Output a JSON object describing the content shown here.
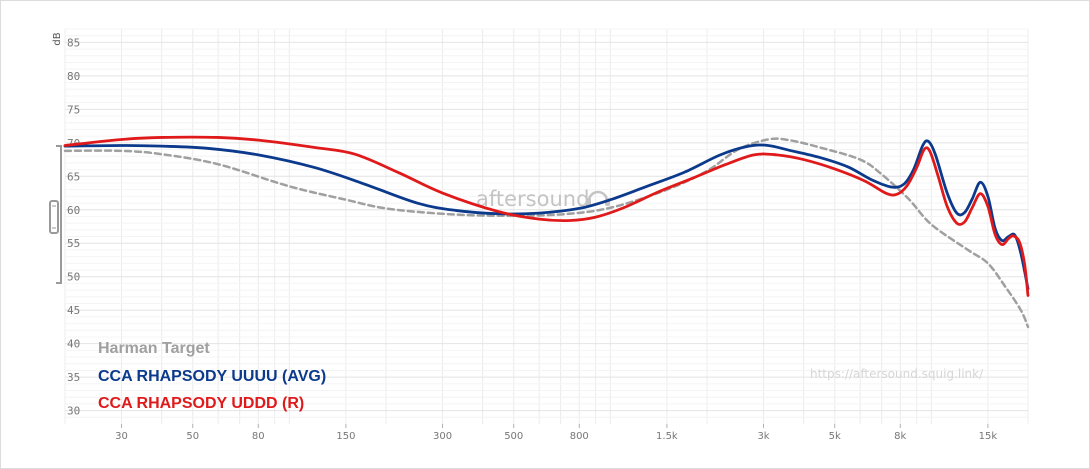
{
  "chart_data": {
    "type": "line",
    "ylabel": "dB",
    "xscale": "log",
    "xlim": [
      20,
      20000
    ],
    "ylim": [
      28,
      87
    ],
    "yticks": [
      85,
      80,
      75,
      70,
      65,
      60,
      55,
      50,
      45,
      40,
      35,
      30
    ],
    "xticks": [
      {
        "v": 30,
        "label": "30"
      },
      {
        "v": 50,
        "label": "50"
      },
      {
        "v": 80,
        "label": "80"
      },
      {
        "v": 150,
        "label": "150"
      },
      {
        "v": 300,
        "label": "300"
      },
      {
        "v": 500,
        "label": "500"
      },
      {
        "v": 800,
        "label": "800"
      },
      {
        "v": 1500,
        "label": "1.5k"
      },
      {
        "v": 3000,
        "label": "3k"
      },
      {
        "v": 5000,
        "label": "5k"
      },
      {
        "v": 8000,
        "label": "8k"
      },
      {
        "v": 15000,
        "label": "15k"
      }
    ],
    "xgrid": [
      20,
      30,
      40,
      50,
      60,
      70,
      80,
      90,
      100,
      150,
      200,
      300,
      400,
      500,
      600,
      700,
      800,
      900,
      1000,
      1500,
      2000,
      3000,
      4000,
      5000,
      6000,
      7000,
      8000,
      9000,
      10000,
      15000,
      20000
    ],
    "grid": true,
    "legend_position": "bottom-left",
    "series": [
      {
        "name": "Harman Target",
        "color": "#a0a0a0",
        "dashed": true,
        "points": [
          [
            20,
            68.8
          ],
          [
            30,
            68.8
          ],
          [
            40,
            68.3
          ],
          [
            60,
            66.8
          ],
          [
            100,
            63.5
          ],
          [
            150,
            61.5
          ],
          [
            200,
            60.2
          ],
          [
            300,
            59.4
          ],
          [
            450,
            59.1
          ],
          [
            700,
            59.3
          ],
          [
            1000,
            60.3
          ],
          [
            1500,
            63.0
          ],
          [
            2000,
            65.8
          ],
          [
            2500,
            69.0
          ],
          [
            3100,
            70.5
          ],
          [
            3600,
            70.4
          ],
          [
            4500,
            69.3
          ],
          [
            6000,
            67.5
          ],
          [
            7000,
            65.3
          ],
          [
            8500,
            61.6
          ],
          [
            10000,
            57.8
          ],
          [
            13000,
            54.0
          ],
          [
            15000,
            52.0
          ],
          [
            17000,
            48.5
          ],
          [
            19000,
            45.0
          ],
          [
            20000,
            42.5
          ]
        ]
      },
      {
        "name": "CCA RHAPSODY UUUU (AVG)",
        "color": "#0b3a8c",
        "dashed": false,
        "points": [
          [
            20,
            69.5
          ],
          [
            30,
            69.6
          ],
          [
            40,
            69.5
          ],
          [
            55,
            69.2
          ],
          [
            80,
            68.2
          ],
          [
            120,
            66.3
          ],
          [
            170,
            63.9
          ],
          [
            250,
            61.0
          ],
          [
            330,
            59.9
          ],
          [
            450,
            59.4
          ],
          [
            600,
            59.5
          ],
          [
            800,
            60.2
          ],
          [
            1000,
            61.5
          ],
          [
            1300,
            63.5
          ],
          [
            1700,
            65.6
          ],
          [
            2200,
            68.2
          ],
          [
            2700,
            69.5
          ],
          [
            3100,
            69.6
          ],
          [
            3600,
            68.9
          ],
          [
            4500,
            67.8
          ],
          [
            5500,
            66.4
          ],
          [
            6500,
            64.5
          ],
          [
            7500,
            63.4
          ],
          [
            8200,
            63.8
          ],
          [
            8800,
            66.0
          ],
          [
            9400,
            69.6
          ],
          [
            9800,
            70.2
          ],
          [
            10300,
            68.2
          ],
          [
            11200,
            62.5
          ],
          [
            12000,
            59.5
          ],
          [
            12700,
            59.6
          ],
          [
            13400,
            61.6
          ],
          [
            14200,
            64.1
          ],
          [
            15000,
            62.0
          ],
          [
            15800,
            57.2
          ],
          [
            16600,
            55.4
          ],
          [
            17400,
            56.0
          ],
          [
            18200,
            56.2
          ],
          [
            19000,
            53.5
          ],
          [
            20000,
            48.2
          ]
        ]
      },
      {
        "name": "CCA RHAPSODY UDDD (R)",
        "color": "#e01a1a",
        "dashed": false,
        "points": [
          [
            20,
            69.6
          ],
          [
            30,
            70.5
          ],
          [
            40,
            70.8
          ],
          [
            60,
            70.8
          ],
          [
            80,
            70.4
          ],
          [
            120,
            69.3
          ],
          [
            160,
            68.3
          ],
          [
            220,
            65.5
          ],
          [
            300,
            62.5
          ],
          [
            450,
            59.7
          ],
          [
            600,
            58.6
          ],
          [
            750,
            58.4
          ],
          [
            900,
            58.9
          ],
          [
            1100,
            60.3
          ],
          [
            1400,
            62.6
          ],
          [
            1800,
            64.7
          ],
          [
            2300,
            66.8
          ],
          [
            2800,
            68.2
          ],
          [
            3300,
            68.2
          ],
          [
            4000,
            67.5
          ],
          [
            5000,
            66.1
          ],
          [
            6200,
            64.3
          ],
          [
            7200,
            62.5
          ],
          [
            7800,
            62.3
          ],
          [
            8400,
            63.6
          ],
          [
            9000,
            66.3
          ],
          [
            9500,
            69.0
          ],
          [
            9900,
            68.7
          ],
          [
            10500,
            65.0
          ],
          [
            11200,
            60.5
          ],
          [
            12000,
            58.0
          ],
          [
            12700,
            58.2
          ],
          [
            13400,
            60.3
          ],
          [
            14200,
            62.4
          ],
          [
            15000,
            60.5
          ],
          [
            15800,
            56.3
          ],
          [
            16600,
            54.8
          ],
          [
            17400,
            55.7
          ],
          [
            18000,
            56.1
          ],
          [
            18800,
            55.2
          ],
          [
            19500,
            52.0
          ],
          [
            20000,
            47.2
          ]
        ]
      }
    ]
  },
  "legend": [
    {
      "label": "Harman Target",
      "color": "#a0a0a0"
    },
    {
      "label": "CCA RHAPSODY UUUU (AVG)",
      "color": "#0b3a8c"
    },
    {
      "label": "CCA RHAPSODY UDDD (R)",
      "color": "#e01a1a"
    }
  ],
  "watermark": "aftersound",
  "url_watermark": "https://aftersound.squig.link/"
}
